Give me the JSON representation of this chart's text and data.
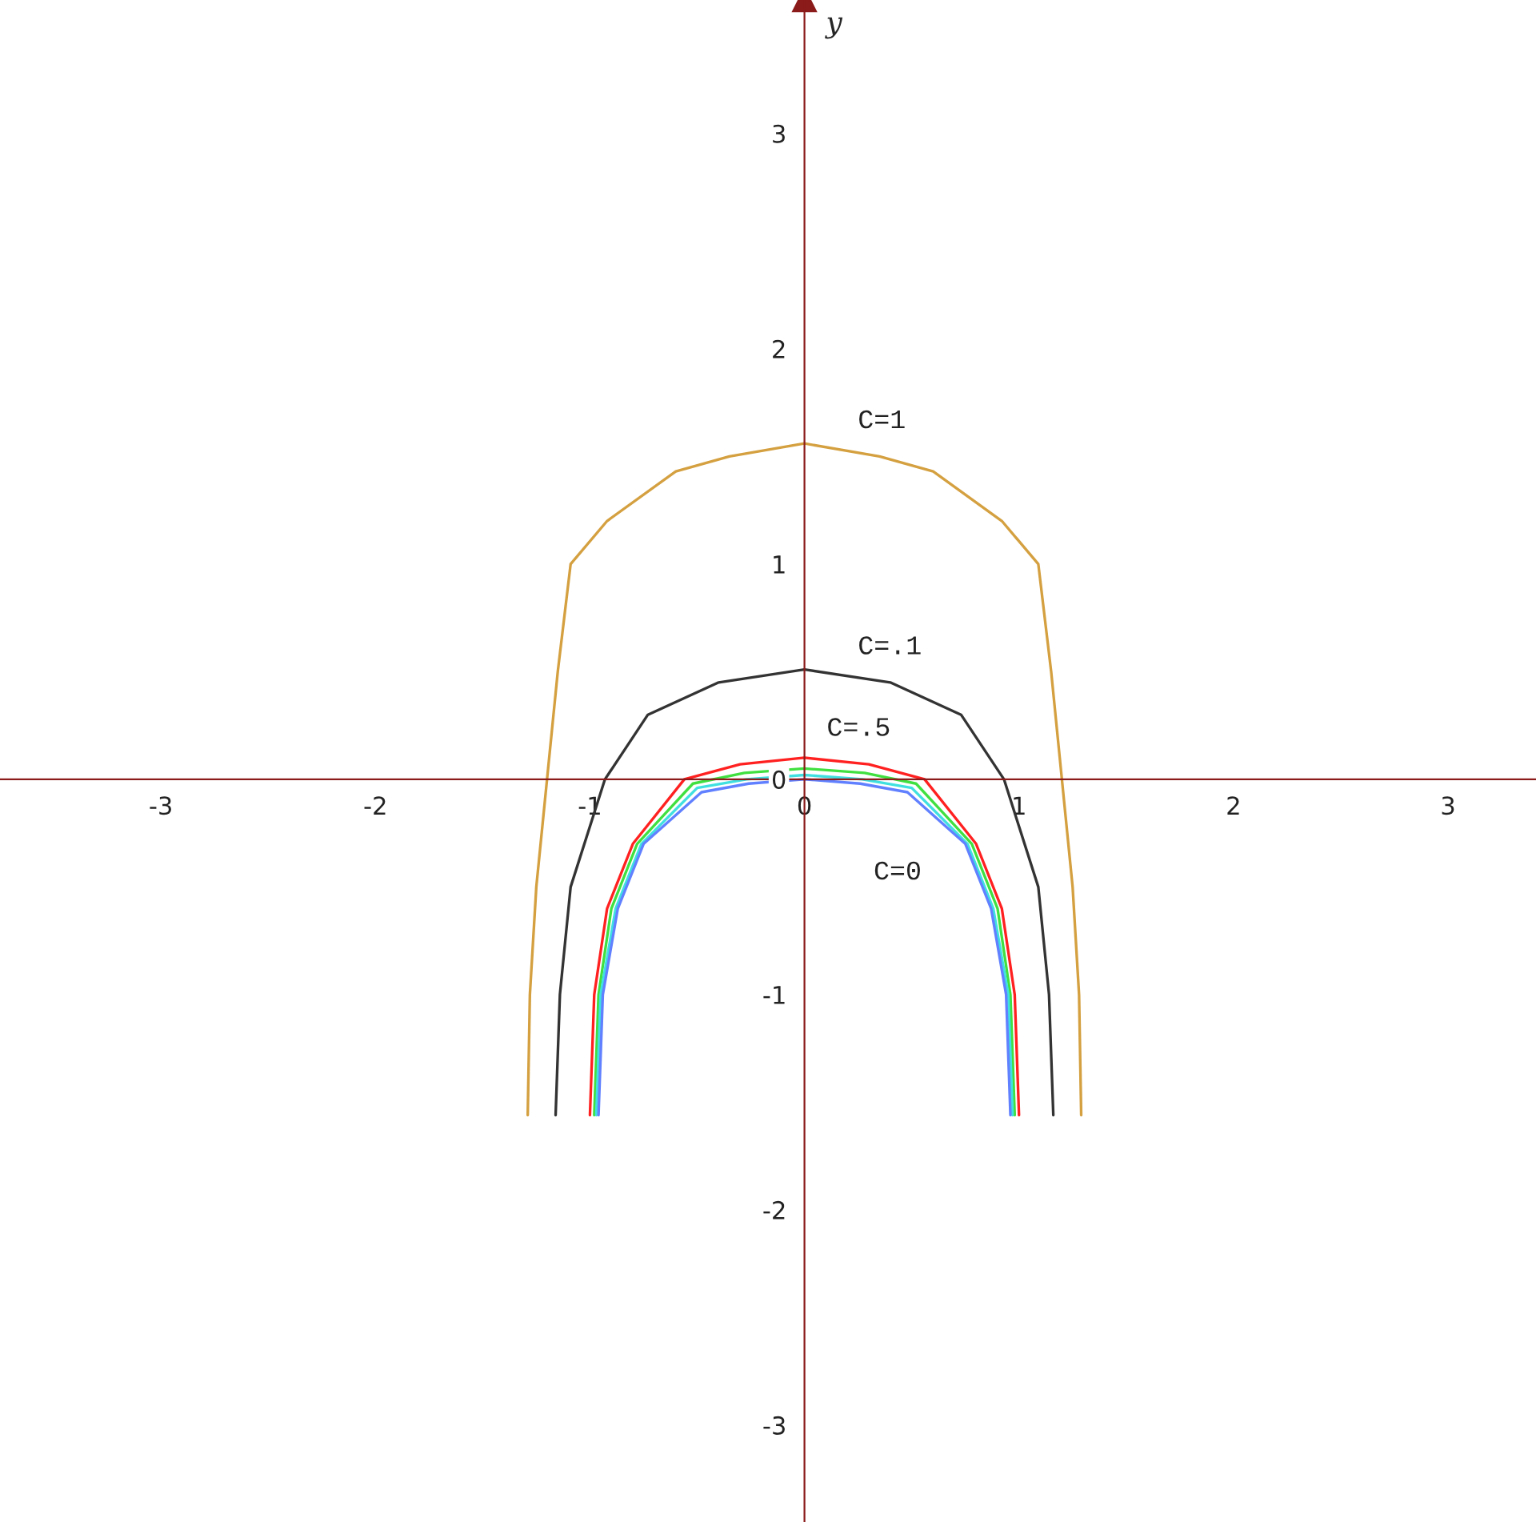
{
  "chart_data": {
    "type": "line",
    "ylabel": "y",
    "xlim": [
      -3.75,
      3.41
    ],
    "ylim": [
      -3.45,
      3.62
    ],
    "xticks": [
      -3,
      -2,
      -1,
      0,
      1,
      2,
      3
    ],
    "yticks": [
      -3,
      -2,
      -1,
      0,
      1,
      2,
      3
    ],
    "grid": false,
    "legend": false,
    "marker": "none",
    "line_style": "solid",
    "series": [
      {
        "name": "C=1",
        "color": "#d4a040",
        "x": [
          -1.29,
          -1.28,
          -1.25,
          -1.2,
          -1.15,
          -1.09,
          -0.92,
          -0.6,
          -0.35,
          0,
          0.35,
          0.6,
          0.92,
          1.09,
          1.15,
          1.2,
          1.25,
          1.28,
          1.29
        ],
        "values": [
          -1.56,
          -1.0,
          -0.5,
          0,
          0.5,
          1.0,
          1.2,
          1.43,
          1.5,
          1.56,
          1.5,
          1.43,
          1.2,
          1.0,
          0.5,
          0,
          -0.5,
          -1.0,
          -1.56
        ]
      },
      {
        "name": "C=.1",
        "color": "#333333",
        "x": [
          -1.16,
          -1.14,
          -1.09,
          -0.93,
          -0.73,
          -0.4,
          0,
          0.4,
          0.73,
          0.93,
          1.09,
          1.14,
          1.16
        ],
        "values": [
          -1.56,
          -1.0,
          -0.5,
          0,
          0.3,
          0.45,
          0.51,
          0.45,
          0.3,
          0,
          -0.5,
          -1.0,
          -1.56
        ]
      },
      {
        "name": "C=.5",
        "color": "#ff2020",
        "x": [
          -1.0,
          -0.98,
          -0.92,
          -0.8,
          -0.56,
          -0.3,
          0,
          0.3,
          0.56,
          0.8,
          0.92,
          0.98,
          1.0
        ],
        "values": [
          -1.56,
          -1.0,
          -0.6,
          -0.3,
          0,
          0.07,
          0.1,
          0.07,
          0,
          -0.3,
          -0.6,
          -1.0,
          -1.56
        ]
      },
      {
        "color": "#40e040",
        "x": [
          -0.98,
          -0.96,
          -0.9,
          -0.78,
          -0.52,
          -0.28,
          0,
          0.28,
          0.52,
          0.78,
          0.9,
          0.96,
          0.98
        ],
        "values": [
          -1.56,
          -1.0,
          -0.6,
          -0.3,
          -0.02,
          0.03,
          0.05,
          0.03,
          -0.02,
          -0.3,
          -0.6,
          -1.0,
          -1.56
        ]
      },
      {
        "color": "#40e0e0",
        "x": [
          -0.97,
          -0.95,
          -0.88,
          -0.76,
          -0.5,
          -0.27,
          0,
          0.27,
          0.5,
          0.76,
          0.88,
          0.95,
          0.97
        ],
        "values": [
          -1.56,
          -1.0,
          -0.6,
          -0.3,
          -0.04,
          0.0,
          0.02,
          0.0,
          -0.04,
          -0.3,
          -0.6,
          -1.0,
          -1.56
        ]
      },
      {
        "name": "C=0",
        "color": "#6080ff",
        "x": [
          -0.96,
          -0.94,
          -0.87,
          -0.75,
          -0.48,
          -0.26,
          0,
          0.26,
          0.48,
          0.75,
          0.87,
          0.94,
          0.96
        ],
        "values": [
          -1.56,
          -1.0,
          -0.6,
          -0.3,
          -0.06,
          -0.02,
          0.0,
          -0.02,
          -0.06,
          -0.3,
          -0.6,
          -1.0,
          -1.56
        ]
      }
    ]
  }
}
